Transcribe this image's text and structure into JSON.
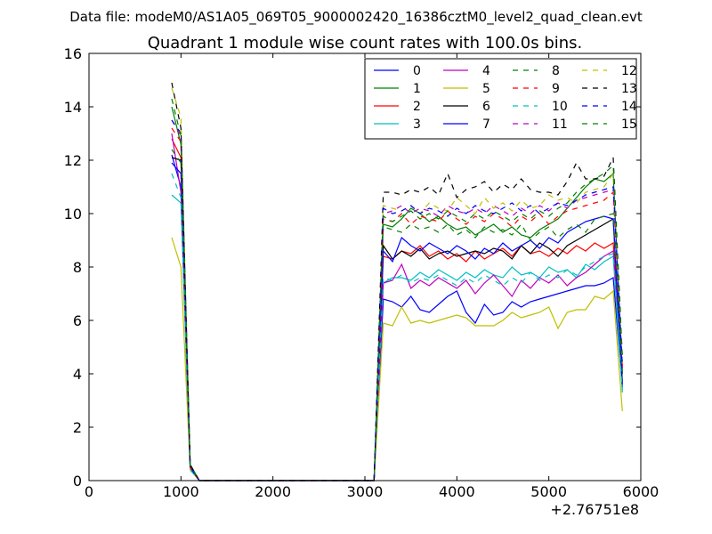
{
  "chart_data": {
    "type": "line",
    "suptitle": "Data file: modeM0/AS1A05_069T05_9000002420_16386cztM0_level2_quad_clean.evt",
    "title": "Quadrant 1 module wise count rates with 100.0s bins.",
    "xlabel": "",
    "ylabel": "",
    "xlim": [
      0,
      6000
    ],
    "ylim": [
      0,
      16
    ],
    "x_offset_label": "+2.76751e8",
    "x_ticks": [
      0,
      1000,
      2000,
      3000,
      4000,
      5000,
      6000
    ],
    "y_ticks": [
      0,
      2,
      4,
      6,
      8,
      10,
      12,
      14,
      16
    ],
    "legend_position": "upper-right",
    "legend_columns": 4,
    "x": [
      900,
      1000,
      1100,
      1200,
      1300,
      3100,
      3200,
      3300,
      3400,
      3500,
      3600,
      3700,
      3800,
      3900,
      4000,
      4100,
      4200,
      4300,
      4400,
      4500,
      4600,
      4700,
      4800,
      4900,
      5000,
      5100,
      5200,
      5300,
      5400,
      5500,
      5600,
      5700,
      5800
    ],
    "series": [
      {
        "name": "0",
        "color": "#0000ff",
        "dash": "solid",
        "values": [
          12.2,
          11.0,
          0.5,
          0.0,
          0.0,
          0.0,
          6.8,
          6.7,
          6.5,
          6.9,
          6.4,
          6.3,
          6.6,
          6.9,
          7.1,
          6.3,
          5.9,
          6.6,
          6.2,
          6.3,
          6.7,
          6.5,
          6.7,
          6.8,
          6.9,
          7.0,
          7.1,
          7.2,
          7.3,
          7.3,
          7.4,
          7.6,
          3.5
        ]
      },
      {
        "name": "1",
        "color": "#008000",
        "dash": "solid",
        "values": [
          14.0,
          12.6,
          0.6,
          0.0,
          0.0,
          0.0,
          9.6,
          9.5,
          9.8,
          10.2,
          10.0,
          9.7,
          9.9,
          9.6,
          9.4,
          9.5,
          9.2,
          9.4,
          9.6,
          9.3,
          9.5,
          9.2,
          9.1,
          9.4,
          9.6,
          9.8,
          10.2,
          10.6,
          11.0,
          11.3,
          11.2,
          11.5,
          4.0
        ]
      },
      {
        "name": "2",
        "color": "#ff0000",
        "dash": "solid",
        "values": [
          12.8,
          12.1,
          0.5,
          0.0,
          0.0,
          0.0,
          8.4,
          8.3,
          8.6,
          8.5,
          8.8,
          8.4,
          8.6,
          8.3,
          8.5,
          8.2,
          8.6,
          8.3,
          8.5,
          8.7,
          8.4,
          8.8,
          8.5,
          8.6,
          8.4,
          8.7,
          8.5,
          8.8,
          8.6,
          8.9,
          8.7,
          8.9,
          4.2
        ]
      },
      {
        "name": "3",
        "color": "#00bfbf",
        "dash": "solid",
        "values": [
          10.7,
          10.4,
          0.4,
          0.0,
          0.0,
          0.0,
          7.4,
          7.6,
          7.6,
          7.5,
          7.8,
          7.6,
          7.9,
          7.7,
          7.5,
          7.8,
          7.6,
          7.9,
          7.7,
          7.6,
          8.0,
          7.7,
          7.8,
          7.6,
          8.0,
          7.8,
          7.9,
          7.6,
          8.1,
          7.9,
          8.2,
          8.4,
          3.3
        ]
      },
      {
        "name": "4",
        "color": "#bf00bf",
        "dash": "solid",
        "values": [
          13.0,
          10.8,
          0.5,
          0.0,
          0.0,
          0.0,
          7.4,
          7.5,
          8.1,
          7.2,
          7.5,
          7.3,
          7.6,
          7.4,
          7.2,
          7.5,
          7.0,
          7.4,
          7.7,
          7.3,
          6.9,
          7.5,
          7.2,
          7.6,
          7.4,
          7.7,
          7.3,
          7.6,
          7.8,
          8.1,
          8.4,
          8.6,
          4.2
        ]
      },
      {
        "name": "5",
        "color": "#bfbf00",
        "dash": "solid",
        "values": [
          9.1,
          8.0,
          0.4,
          0.0,
          0.0,
          0.0,
          5.9,
          5.8,
          6.5,
          5.9,
          6.0,
          5.9,
          6.0,
          6.1,
          6.2,
          6.1,
          5.8,
          5.8,
          5.8,
          6.0,
          6.3,
          6.1,
          6.2,
          6.3,
          6.5,
          5.7,
          6.3,
          6.4,
          6.4,
          6.9,
          6.8,
          7.1,
          2.6
        ]
      },
      {
        "name": "6",
        "color": "#000000",
        "dash": "solid",
        "values": [
          12.1,
          12.0,
          0.5,
          0.0,
          0.0,
          0.0,
          8.8,
          8.3,
          8.6,
          8.4,
          8.7,
          8.3,
          8.5,
          8.6,
          8.4,
          8.5,
          8.6,
          8.5,
          8.7,
          8.6,
          8.3,
          8.8,
          8.5,
          8.9,
          8.7,
          8.4,
          8.8,
          9.0,
          9.2,
          9.4,
          9.6,
          9.8,
          3.7
        ]
      },
      {
        "name": "7",
        "color": "#0000ff",
        "dash": "solid",
        "values": [
          11.9,
          11.5,
          0.5,
          0.0,
          0.0,
          0.0,
          8.6,
          8.2,
          9.1,
          8.8,
          8.6,
          8.9,
          8.7,
          8.5,
          8.8,
          8.6,
          8.3,
          8.7,
          8.5,
          8.9,
          8.6,
          8.8,
          9.0,
          8.7,
          9.1,
          8.9,
          9.3,
          9.5,
          9.7,
          9.8,
          9.9,
          9.8,
          3.6
        ]
      },
      {
        "name": "8",
        "color": "#008000",
        "dash": "dashed",
        "values": [
          12.4,
          11.9,
          0.5,
          0.0,
          0.0,
          0.0,
          9.5,
          9.4,
          9.3,
          9.6,
          9.4,
          9.5,
          9.3,
          9.6,
          9.2,
          9.4,
          9.1,
          9.5,
          9.3,
          9.4,
          9.2,
          9.6,
          9.0,
          9.3,
          9.5,
          9.1,
          9.4,
          9.6,
          9.3,
          9.8,
          9.9,
          10.0,
          4.1
        ]
      },
      {
        "name": "9",
        "color": "#ff0000",
        "dash": "dashed",
        "values": [
          13.2,
          12.7,
          0.5,
          0.0,
          0.0,
          0.0,
          9.8,
          9.7,
          10.0,
          9.6,
          9.9,
          9.8,
          9.7,
          10.1,
          9.8,
          9.6,
          9.9,
          9.7,
          10.0,
          9.8,
          9.5,
          9.9,
          9.7,
          10.0,
          9.6,
          9.9,
          10.1,
          10.2,
          10.3,
          10.4,
          10.5,
          10.8,
          4.3
        ]
      },
      {
        "name": "10",
        "color": "#00bfbf",
        "dash": "dashed",
        "values": [
          11.5,
          10.6,
          0.4,
          0.0,
          0.0,
          0.0,
          7.6,
          7.5,
          7.7,
          7.4,
          7.6,
          7.5,
          7.7,
          7.5,
          7.3,
          7.6,
          7.4,
          7.7,
          7.5,
          7.3,
          7.6,
          7.4,
          7.8,
          7.5,
          7.7,
          7.6,
          7.9,
          7.7,
          8.0,
          8.2,
          8.4,
          8.5,
          3.4
        ]
      },
      {
        "name": "11",
        "color": "#bf00bf",
        "dash": "dashed",
        "values": [
          13.5,
          12.9,
          0.5,
          0.0,
          0.0,
          0.0,
          10.0,
          10.1,
          10.3,
          10.0,
          10.2,
          10.1,
          9.9,
          10.3,
          10.1,
          10.0,
          10.2,
          10.0,
          10.3,
          10.1,
          9.9,
          10.2,
          10.0,
          10.3,
          10.1,
          10.4,
          10.2,
          10.5,
          10.6,
          10.7,
          10.8,
          10.9,
          4.5
        ]
      },
      {
        "name": "12",
        "color": "#bfbf00",
        "dash": "dashed",
        "values": [
          14.7,
          13.6,
          0.6,
          0.0,
          0.0,
          0.0,
          10.3,
          10.2,
          10.1,
          10.3,
          10.0,
          10.4,
          10.2,
          10.1,
          10.6,
          10.3,
          10.0,
          10.6,
          10.2,
          10.4,
          10.1,
          10.5,
          10.2,
          10.3,
          10.7,
          10.5,
          10.6,
          10.4,
          10.8,
          10.9,
          11.0,
          11.5,
          4.4
        ]
      },
      {
        "name": "13",
        "color": "#000000",
        "dash": "dashed",
        "values": [
          14.9,
          13.2,
          0.6,
          0.0,
          0.0,
          0.0,
          10.8,
          10.8,
          10.7,
          10.9,
          10.8,
          11.0,
          10.7,
          11.5,
          10.6,
          10.9,
          11.0,
          11.2,
          10.8,
          11.1,
          10.9,
          11.3,
          10.9,
          10.8,
          10.8,
          10.7,
          11.2,
          11.9,
          11.3,
          11.3,
          11.4,
          12.1,
          4.6
        ]
      },
      {
        "name": "14",
        "color": "#0000ff",
        "dash": "dashed",
        "values": [
          13.5,
          13.0,
          0.5,
          0.0,
          0.0,
          0.0,
          10.2,
          10.0,
          10.1,
          10.3,
          10.0,
          10.2,
          10.1,
          9.9,
          10.2,
          10.0,
          10.3,
          10.1,
          10.0,
          10.2,
          10.4,
          10.1,
          10.3,
          10.0,
          10.2,
          10.4,
          10.3,
          10.5,
          10.7,
          10.8,
          10.9,
          11.0,
          4.3
        ]
      },
      {
        "name": "15",
        "color": "#008000",
        "dash": "dashed",
        "values": [
          14.3,
          12.9,
          0.6,
          0.0,
          0.0,
          0.0,
          9.9,
          9.7,
          9.9,
          10.1,
          9.8,
          10.0,
          9.8,
          10.1,
          9.9,
          9.7,
          10.0,
          9.8,
          10.1,
          9.9,
          9.7,
          10.0,
          9.8,
          10.1,
          9.9,
          10.2,
          10.4,
          10.8,
          11.1,
          11.3,
          11.5,
          11.8,
          4.6
        ]
      }
    ]
  }
}
